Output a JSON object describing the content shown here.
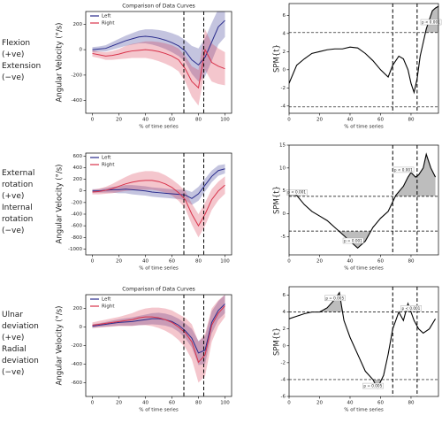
{
  "row_labels": [
    [
      "Flexion",
      "(+ve)",
      "Extension",
      "(−ve)"
    ],
    [
      "External",
      "rotation",
      "(+ve)",
      "Internal",
      "rotation",
      "(−ve)"
    ],
    [
      "Ulnar",
      "deviation",
      "(+ve)",
      "Radial",
      "deviation",
      "(−ve)"
    ]
  ],
  "chart_data": [
    {
      "type": "line",
      "title": "Comparison of Data Curves",
      "xlabel": "% of time series",
      "ylabel": "Angular Velocity (°/s)",
      "x": [
        0,
        5,
        10,
        15,
        20,
        25,
        30,
        35,
        40,
        45,
        50,
        55,
        60,
        65,
        70,
        75,
        80,
        85,
        90,
        95,
        100
      ],
      "series": [
        {
          "name": "Left",
          "color": "#2a2c8c",
          "values": [
            0,
            5,
            10,
            30,
            50,
            70,
            85,
            100,
            105,
            100,
            90,
            75,
            55,
            30,
            -10,
            -80,
            -120,
            -60,
            60,
            180,
            230
          ],
          "sd": [
            20,
            20,
            25,
            30,
            35,
            40,
            45,
            50,
            55,
            60,
            65,
            70,
            75,
            80,
            85,
            110,
            130,
            150,
            150,
            140,
            130
          ]
        },
        {
          "name": "Right",
          "color": "#d8324a",
          "values": [
            -30,
            -40,
            -50,
            -45,
            -35,
            -20,
            -10,
            -5,
            0,
            -5,
            -15,
            -30,
            -50,
            -80,
            -150,
            -250,
            -300,
            0,
            -100,
            -130,
            -150
          ],
          "sd": [
            25,
            25,
            30,
            35,
            40,
            50,
            55,
            60,
            65,
            70,
            75,
            80,
            85,
            90,
            100,
            120,
            140,
            160,
            150,
            140,
            130
          ]
        }
      ],
      "xlim": [
        -5,
        105
      ],
      "xticks": [
        0,
        20,
        40,
        60,
        80,
        100
      ],
      "ylim": [
        -500,
        300
      ],
      "yticks": [
        -400,
        -200,
        0,
        200
      ],
      "vlines": [
        69,
        84
      ]
    },
    {
      "type": "line",
      "xlabel": "% of time series",
      "ylabel": "SPM{t}",
      "x": [
        0,
        5,
        10,
        15,
        20,
        25,
        30,
        35,
        40,
        45,
        50,
        55,
        60,
        65,
        68,
        72,
        75,
        78,
        80,
        82,
        84,
        86,
        88,
        90,
        92,
        94,
        96,
        98
      ],
      "series": [
        {
          "color": "#000000",
          "values": [
            -1.5,
            0.5,
            1.2,
            1.8,
            2.0,
            2.2,
            2.3,
            2.3,
            2.5,
            2.4,
            1.8,
            1.0,
            0.0,
            -0.8,
            0.5,
            1.5,
            1.2,
            0.0,
            -1.5,
            -2.5,
            -1.0,
            1.5,
            3.0,
            4.5,
            5.5,
            6.5,
            6.8,
            7.0
          ]
        }
      ],
      "xlim": [
        0,
        98
      ],
      "xticks": [
        0,
        20,
        40,
        60,
        80
      ],
      "ylim": [
        -4.8,
        7.3
      ],
      "yticks": [
        -4,
        -2,
        0,
        2,
        4,
        6
      ],
      "hlines": [
        4.1,
        -4.1
      ],
      "vlines": [
        68,
        84
      ],
      "annotations": [
        {
          "text": "p < 0.001",
          "x": 93,
          "y": 5.2
        }
      ]
    },
    {
      "type": "line",
      "xlabel": "% of time series",
      "ylabel": "Angular Velocity (°/s)",
      "x": [
        0,
        5,
        10,
        15,
        20,
        25,
        30,
        35,
        40,
        45,
        50,
        55,
        60,
        65,
        70,
        75,
        80,
        85,
        90,
        95,
        100
      ],
      "series": [
        {
          "name": "Left",
          "color": "#2a2c8c",
          "values": [
            0,
            0,
            10,
            20,
            20,
            30,
            20,
            10,
            0,
            -20,
            -30,
            -40,
            -50,
            -60,
            -70,
            -130,
            -50,
            100,
            250,
            350,
            380
          ],
          "sd": [
            30,
            30,
            40,
            50,
            60,
            70,
            80,
            80,
            80,
            80,
            80,
            80,
            80,
            80,
            90,
            110,
            120,
            110,
            100,
            90,
            80
          ]
        },
        {
          "name": "Right",
          "color": "#d8324a",
          "values": [
            -20,
            -10,
            10,
            40,
            80,
            120,
            150,
            170,
            180,
            180,
            160,
            120,
            60,
            -30,
            -150,
            -400,
            -600,
            -400,
            -150,
            0,
            100
          ],
          "sd": [
            40,
            50,
            60,
            80,
            100,
            120,
            140,
            150,
            160,
            160,
            160,
            150,
            140,
            140,
            150,
            180,
            200,
            200,
            180,
            160,
            150
          ]
        }
      ],
      "xlim": [
        -5,
        105
      ],
      "xticks": [
        0,
        20,
        40,
        60,
        80,
        100
      ],
      "ylim": [
        -1100,
        650
      ],
      "yticks": [
        -1000,
        -800,
        -600,
        -400,
        -200,
        0,
        200,
        400,
        600
      ],
      "vlines": [
        69,
        84
      ]
    },
    {
      "type": "line",
      "xlabel": "% of time series",
      "ylabel": "SPM{t}",
      "x": [
        0,
        5,
        10,
        15,
        20,
        25,
        30,
        35,
        40,
        45,
        50,
        55,
        60,
        65,
        70,
        75,
        78,
        80,
        83,
        85,
        88,
        90,
        93,
        96
      ],
      "series": [
        {
          "color": "#000000",
          "values": [
            5,
            4,
            2,
            0.5,
            -0.5,
            -1.5,
            -3,
            -4.5,
            -6,
            -7.5,
            -6,
            -3,
            -1,
            0.5,
            4,
            6,
            8,
            9,
            8,
            8.5,
            10,
            13,
            10,
            8
          ]
        }
      ],
      "xlim": [
        0,
        98
      ],
      "xticks": [
        0,
        20,
        40,
        60,
        80
      ],
      "ylim": [
        -9,
        15
      ],
      "yticks": [
        -5,
        0,
        5,
        10,
        15
      ],
      "hlines": [
        3.8,
        -3.8
      ],
      "vlines": [
        68,
        84
      ],
      "annotations": [
        {
          "text": "p < 0.001",
          "x": 5,
          "y": 4.6
        },
        {
          "text": "p = 0.001",
          "x": 42,
          "y": -6
        },
        {
          "text": "p < 0.001",
          "x": 75,
          "y": 9.5
        }
      ]
    },
    {
      "type": "line",
      "title": "Comparison of Data Curves",
      "xlabel": "% of time series",
      "ylabel": "Angular Velocity (°/s)",
      "x": [
        0,
        5,
        10,
        15,
        20,
        25,
        30,
        35,
        40,
        45,
        50,
        55,
        60,
        65,
        70,
        75,
        80,
        85,
        90,
        95,
        100
      ],
      "series": [
        {
          "name": "Left",
          "color": "#2a2c8c",
          "values": [
            10,
            20,
            30,
            40,
            50,
            55,
            60,
            70,
            80,
            90,
            90,
            80,
            60,
            20,
            -40,
            -120,
            -280,
            -250,
            50,
            180,
            250
          ],
          "sd": [
            20,
            20,
            25,
            30,
            35,
            40,
            45,
            50,
            55,
            60,
            65,
            65,
            65,
            70,
            80,
            100,
            130,
            150,
            120,
            100,
            100
          ]
        },
        {
          "name": "Right",
          "color": "#d8324a",
          "values": [
            20,
            30,
            40,
            50,
            60,
            70,
            80,
            100,
            110,
            110,
            100,
            80,
            50,
            0,
            -60,
            -160,
            -380,
            -300,
            20,
            150,
            230
          ],
          "sd": [
            30,
            35,
            40,
            45,
            50,
            60,
            70,
            80,
            90,
            100,
            110,
            120,
            130,
            140,
            160,
            190,
            220,
            230,
            180,
            140,
            120
          ]
        }
      ],
      "xlim": [
        -5,
        105
      ],
      "xticks": [
        0,
        20,
        40,
        60,
        80,
        100
      ],
      "ylim": [
        -750,
        350
      ],
      "yticks": [
        -600,
        -400,
        -200,
        0,
        200
      ],
      "vlines": [
        69,
        84
      ]
    },
    {
      "type": "line",
      "xlabel": "% of time series",
      "ylabel": "SPM{t}",
      "x": [
        0,
        5,
        10,
        15,
        20,
        25,
        30,
        33,
        36,
        40,
        45,
        50,
        55,
        58,
        62,
        65,
        68,
        72,
        75,
        78,
        82,
        85,
        88,
        92,
        96
      ],
      "series": [
        {
          "color": "#000000",
          "values": [
            3.2,
            3.5,
            3.8,
            4,
            4,
            4.5,
            5.5,
            6.3,
            3,
            1,
            -1,
            -3,
            -4,
            -5,
            -3.5,
            -1,
            2,
            4,
            3,
            5,
            3,
            2,
            1.5,
            2,
            3.2
          ]
        }
      ],
      "xlim": [
        0,
        98
      ],
      "xticks": [
        0,
        20,
        40,
        60,
        80
      ],
      "ylim": [
        -6,
        7
      ],
      "yticks": [
        -6,
        -4,
        -2,
        0,
        2,
        4,
        6
      ],
      "hlines": [
        4,
        -4
      ],
      "vlines": [
        68,
        84
      ],
      "annotations": [
        {
          "text": "p = 0.005",
          "x": 30,
          "y": 5.6
        },
        {
          "text": "p = 0.005",
          "x": 55,
          "y": -4.8
        },
        {
          "text": "p < 0.001",
          "x": 80,
          "y": 4.4
        }
      ]
    }
  ]
}
